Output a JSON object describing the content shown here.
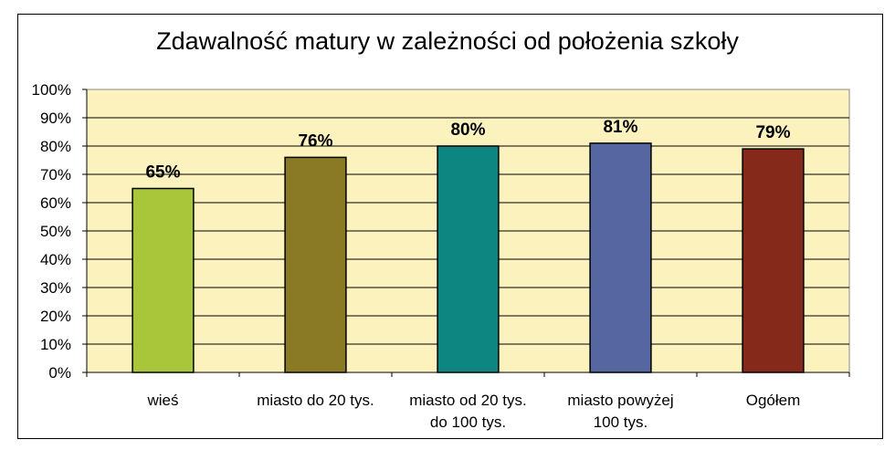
{
  "chart_data": {
    "type": "bar",
    "title": "Zdawalność matury w zależności od położenia szkoły",
    "categories": [
      [
        "wieś"
      ],
      [
        "miasto do 20 tys."
      ],
      [
        "miasto od 20 tys.",
        "do 100 tys."
      ],
      [
        "miasto powyżej",
        "100 tys."
      ],
      [
        "Ogółem"
      ]
    ],
    "values": [
      65,
      76,
      80,
      81,
      79
    ],
    "data_labels": [
      "65%",
      "76%",
      "80%",
      "81%",
      "79%"
    ],
    "ylim": [
      0,
      100
    ],
    "yticks": [
      "0%",
      "10%",
      "20%",
      "30%",
      "40%",
      "50%",
      "60%",
      "70%",
      "80%",
      "90%",
      "100%"
    ],
    "xlabel": "",
    "ylabel": "",
    "grid": true,
    "legend": "none",
    "colors": {
      "plot_background": "#FBF2BE",
      "bars": [
        "#A9C63A",
        "#8A7A26",
        "#0D8580",
        "#5566A0",
        "#85291A"
      ]
    }
  }
}
